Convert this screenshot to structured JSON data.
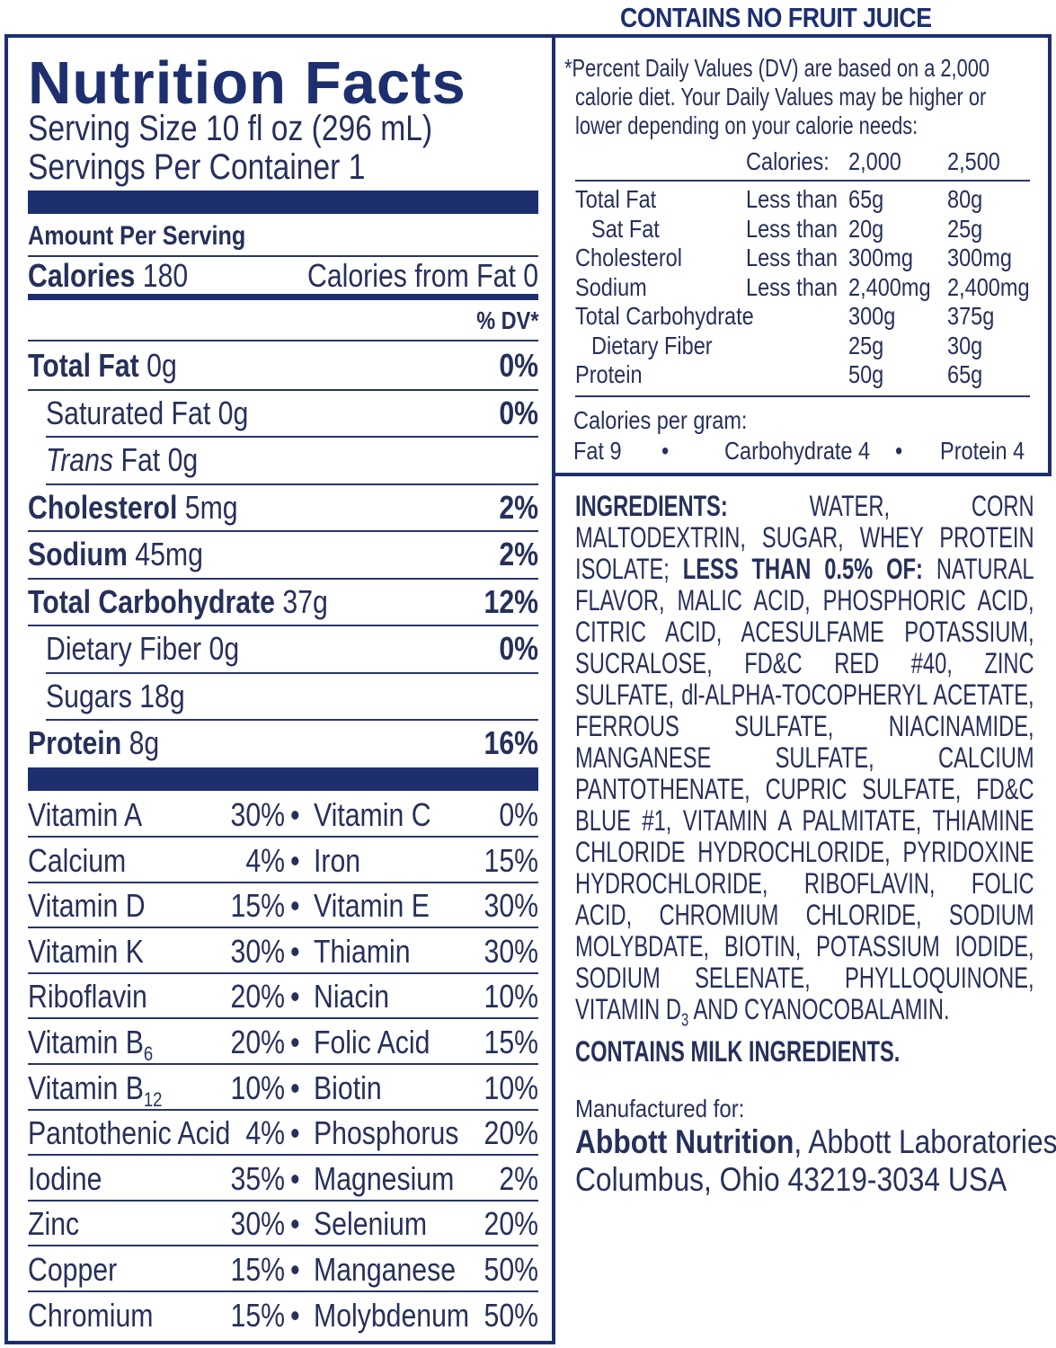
{
  "top_note": "CONTAINS NO FRUIT JUICE",
  "title": "Nutrition Facts",
  "serving_size": "Serving Size 10 fl oz (296 mL)",
  "servings_per_container": "Servings Per Container 1",
  "amount_per_serving": "Amount Per Serving",
  "calories": {
    "label": "Calories",
    "value": "180",
    "from_fat": "Calories from Fat 0"
  },
  "dv_header": "% DV*",
  "nutrients": [
    {
      "label": "Total Fat",
      "amount": "0g",
      "dv": "0%",
      "bold": true
    },
    {
      "label": "Saturated Fat",
      "amount": "0g",
      "dv": "0%"
    },
    {
      "label": "Trans",
      "label_suffix": "Fat",
      "amount": "0g",
      "dv": ""
    },
    {
      "label": "Cholesterol",
      "amount": "5mg",
      "dv": "2%",
      "bold": true
    },
    {
      "label": "Sodium",
      "amount": "45mg",
      "dv": "2%",
      "bold": true
    },
    {
      "label": "Total Carbohydrate",
      "amount": "37g",
      "dv": "12%",
      "bold": true
    },
    {
      "label": "Dietary Fiber",
      "amount": "0g",
      "dv": "0%"
    },
    {
      "label": "Sugars",
      "amount": "18g",
      "dv": ""
    },
    {
      "label": "Protein",
      "amount": "8g",
      "dv": "16%",
      "bold": true
    }
  ],
  "vitamins": [
    {
      "a": "Vitamin A",
      "ap": "30%",
      "b": "Vitamin C",
      "bp": "0%"
    },
    {
      "a": "Calcium",
      "ap": "4%",
      "b": "Iron",
      "bp": "15%"
    },
    {
      "a": "Vitamin D",
      "ap": "15%",
      "b": "Vitamin E",
      "bp": "30%"
    },
    {
      "a": "Vitamin K",
      "ap": "30%",
      "b": "Thiamin",
      "bp": "30%"
    },
    {
      "a": "Riboflavin",
      "ap": "20%",
      "b": "Niacin",
      "bp": "10%"
    },
    {
      "a": "Vitamin B",
      "asub": "6",
      "ap": "20%",
      "b": "Folic Acid",
      "bp": "15%"
    },
    {
      "a": "Vitamin B",
      "asub": "12",
      "ap": "10%",
      "b": "Biotin",
      "bp": "10%"
    },
    {
      "a": "Pantothenic Acid",
      "ap": "4%",
      "b": "Phosphorus",
      "bp": "20%"
    },
    {
      "a": "Iodine",
      "ap": "35%",
      "b": "Magnesium",
      "bp": "2%"
    },
    {
      "a": "Zinc",
      "ap": "30%",
      "b": "Selenium",
      "bp": "20%"
    },
    {
      "a": "Copper",
      "ap": "15%",
      "b": "Manganese",
      "bp": "50%"
    },
    {
      "a": "Chromium",
      "ap": "15%",
      "b": "Molybdenum",
      "bp": "50%"
    }
  ],
  "bullet": "•",
  "dv_note": {
    "lines": [
      "*Percent Daily Values (DV) are based on a 2,000",
      "calorie diet. Your Daily Values may be higher or",
      "lower depending on your calorie needs:"
    ],
    "header": {
      "label": "Calories:",
      "c1": "2,000",
      "c2": "2,500"
    },
    "rows": [
      {
        "name": "Total Fat",
        "qual": "Less than",
        "c1": "65g",
        "c2": "80g"
      },
      {
        "name": "Sat Fat",
        "qual": "Less than",
        "c1": "20g",
        "c2": "25g",
        "indent": true
      },
      {
        "name": "Cholesterol",
        "qual": "Less than",
        "c1": "300mg",
        "c2": "300mg"
      },
      {
        "name": "Sodium",
        "qual": "Less than",
        "c1": "2,400mg",
        "c2": "2,400mg"
      },
      {
        "name": "Total Carbohydrate",
        "qual": "",
        "c1": "300g",
        "c2": "375g"
      },
      {
        "name": "Dietary Fiber",
        "qual": "",
        "c1": "25g",
        "c2": "30g",
        "indent": true
      },
      {
        "name": "Protein",
        "qual": "",
        "c1": "50g",
        "c2": "65g"
      }
    ],
    "cal_per_gram": "Calories per gram:",
    "fat": "Fat 9",
    "carb": "Carbohydrate 4",
    "protein": "Protein 4"
  },
  "ingredients": {
    "label": "INGREDIENTS:",
    "text1": "WATER, CORN MALTODEXTRIN, SUGAR, WHEY PROTEIN ISOLATE;",
    "less_than": "LESS THAN 0.5% OF:",
    "text2": "NATURAL FLAVOR, MALIC ACID, PHOSPHORIC ACID, CITRIC ACID, ACESULFAME POTASSIUM, SUCRALOSE, FD&C RED #40, ZINC SULFATE, dl-ALPHA-TOCOPHERYL ACETATE, FERROUS SULFATE, NIACINAMIDE, MANGANESE SULFATE, CALCIUM PANTOTHENATE, CUPRIC SULFATE, FD&C BLUE #1, VITAMIN A PALMITATE, THIAMINE CHLORIDE HYDROCHLORIDE, PYRIDOXINE HYDROCHLORIDE, RIBOFLAVIN, FOLIC ACID, CHROMIUM CHLORIDE, SODIUM MOLYBDATE, BIOTIN, POTASSIUM IODIDE, SODIUM SELENATE, PHYLLOQUINONE, VITAMIN D",
    "d_sub": "3",
    "text3": "AND CYANOCOBALAMIN.",
    "contains": "CONTAINS MILK INGREDIENTS."
  },
  "manufacturer": {
    "label": "Manufactured for:",
    "brand": "Abbott Nutrition",
    "company": ", Abbott Laboratories",
    "address": "Columbus, Ohio 43219-3034 USA"
  },
  "colors": {
    "navy": "#1d2f6f",
    "text": "#26305a"
  }
}
